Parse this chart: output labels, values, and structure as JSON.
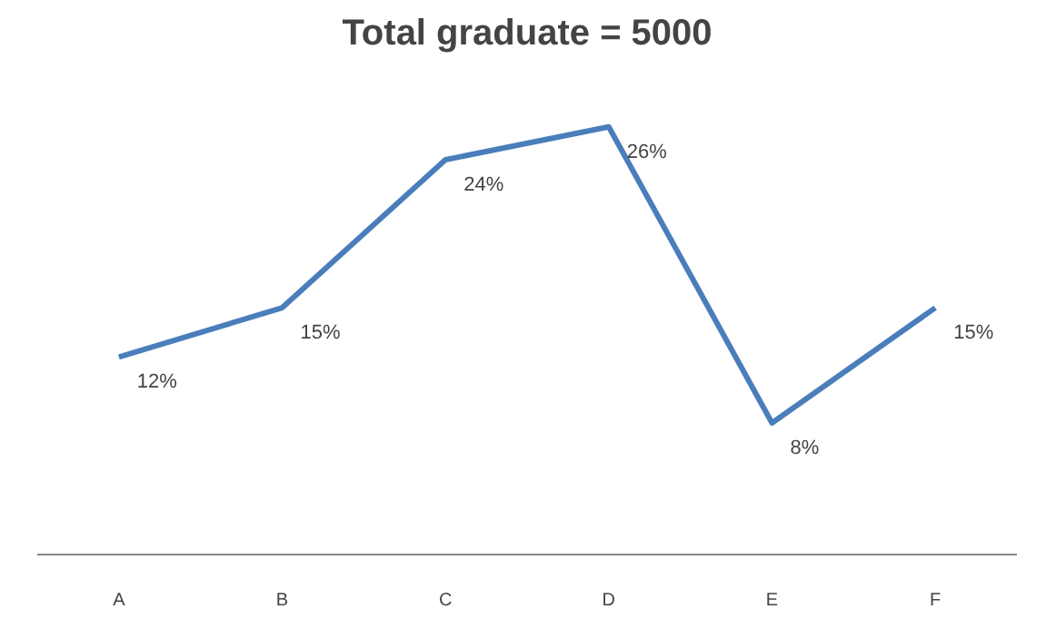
{
  "chart_data": {
    "type": "line",
    "title": "Total graduate = 5000",
    "categories": [
      "A",
      "B",
      "C",
      "D",
      "E",
      "F"
    ],
    "series": [
      {
        "color": "#4a7ebb",
        "values": [
          12,
          15,
          24,
          26,
          8,
          15
        ],
        "value_labels": [
          "12%",
          "15%",
          "24%",
          "26%",
          "8%",
          "15%"
        ]
      }
    ],
    "grid": false,
    "marker": "none",
    "line_style": "solid",
    "tick_labels": "x"
  }
}
